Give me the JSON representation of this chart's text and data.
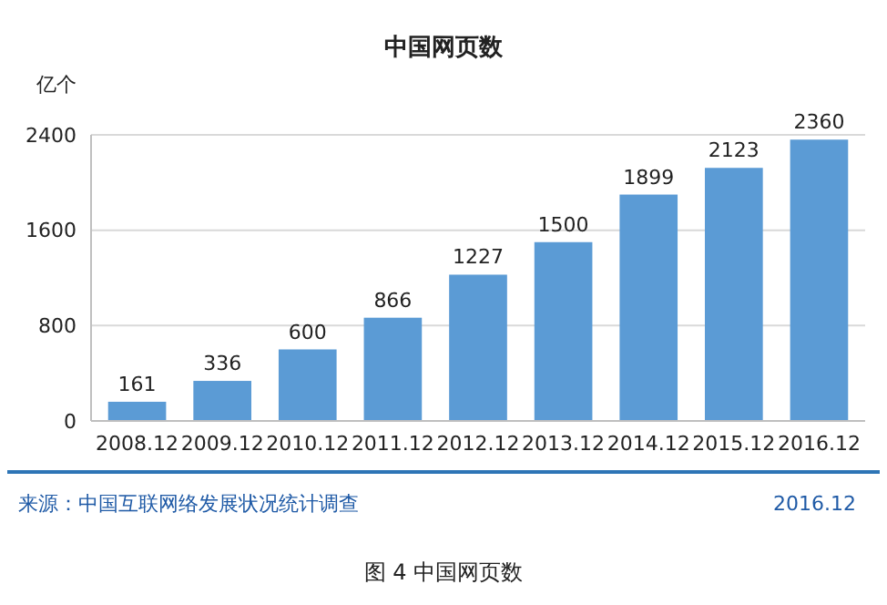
{
  "chart_data": {
    "type": "bar",
    "title": "中国网页数",
    "ylabel": "亿个",
    "categories": [
      "2008.12",
      "2009.12",
      "2010.12",
      "2011.12",
      "2012.12",
      "2013.12",
      "2014.12",
      "2015.12",
      "2016.12"
    ],
    "values": [
      161,
      336,
      600,
      866,
      1227,
      1500,
      1899,
      2123,
      2360
    ],
    "color": "#5b9bd5",
    "ylim": [
      0,
      2400
    ],
    "yticks": [
      0,
      800,
      1600,
      2400
    ],
    "grid": "y",
    "data_labels": true,
    "annotations": [
      "来源：中国互联网络发展状况统计调查",
      "2016.12",
      "图 4    中国网页数"
    ]
  }
}
